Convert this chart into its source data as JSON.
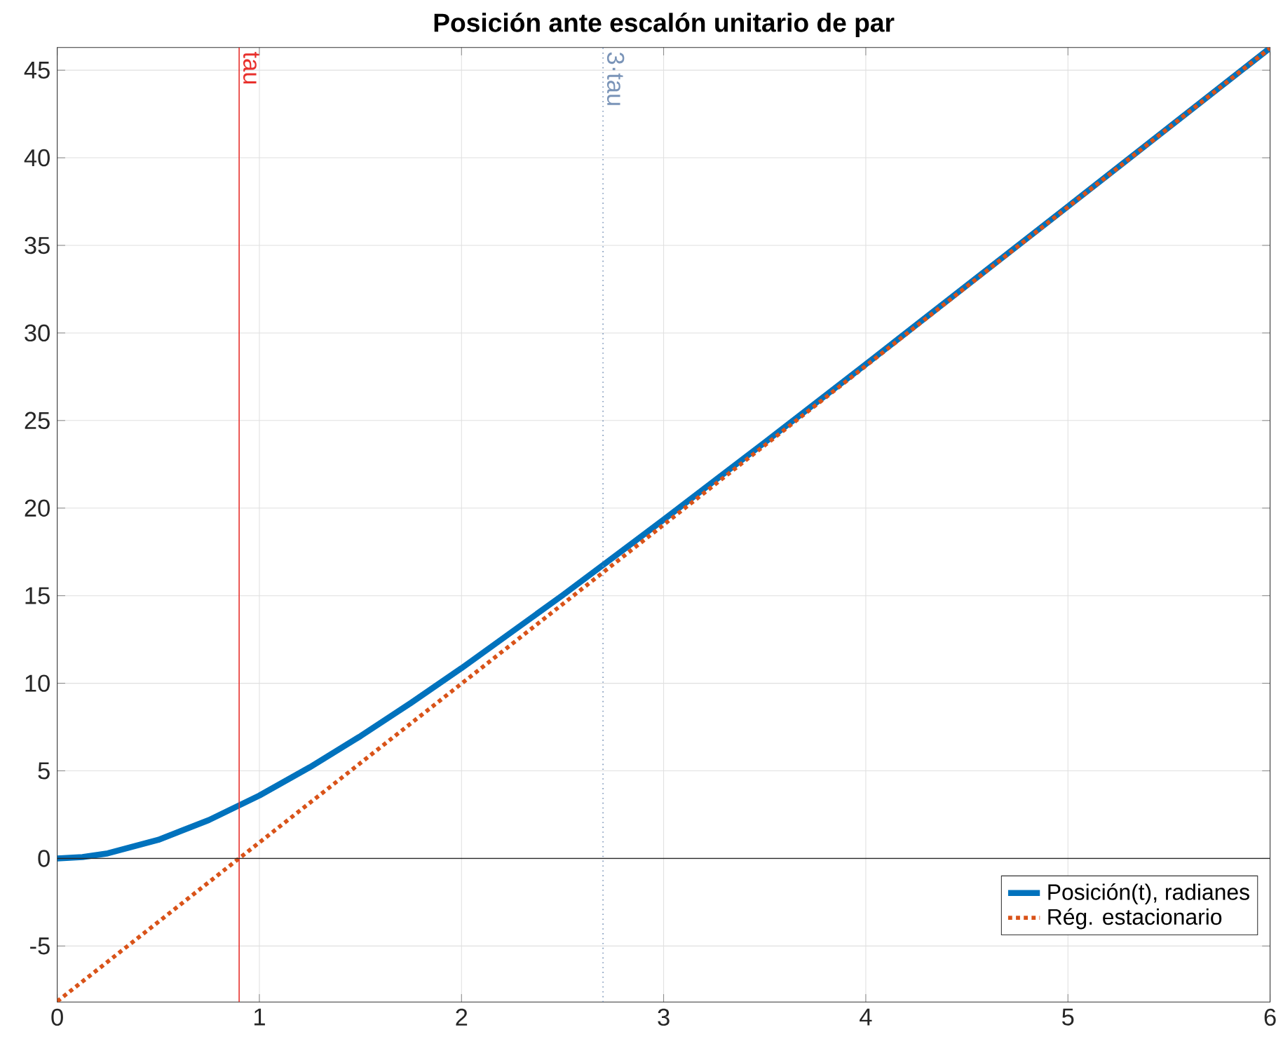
{
  "chart_data": {
    "type": "line",
    "title": "Posición ante escalón unitario de par",
    "xlim": [
      0,
      6
    ],
    "ylim": [
      -8.2,
      46.3
    ],
    "xticks": [
      0,
      1,
      2,
      3,
      4,
      5,
      6
    ],
    "yticks": [
      -5,
      0,
      5,
      10,
      15,
      20,
      25,
      30,
      35,
      40,
      45
    ],
    "grid": true,
    "legend": "bottom right",
    "marker": "none",
    "series": [
      {
        "name": "Posición(t), radianes",
        "color": "#0072bd",
        "line_style": "solid",
        "x": [
          0,
          0.125,
          0.25,
          0.5,
          0.75,
          1.0,
          1.25,
          1.5,
          1.75,
          2.0,
          2.5,
          3.0,
          3.5,
          4.0,
          5.0,
          6.0
        ],
        "values": [
          0,
          0.08,
          0.29,
          1.06,
          2.19,
          3.59,
          5.21,
          6.98,
          8.88,
          10.86,
          15.02,
          19.34,
          23.75,
          28.21,
          37.22,
          46.27
        ]
      },
      {
        "name": "Rég. estacionario",
        "color": "#d95319",
        "line_style": "dotted",
        "x": [
          0,
          6
        ],
        "values": [
          -8.16,
          46.26
        ]
      }
    ],
    "ref_lines": [
      {
        "axis": "x",
        "value": 0.9,
        "label": "tau",
        "color": "#e8302c",
        "line_style": "solid"
      },
      {
        "axis": "x",
        "value": 2.7,
        "label": "3·tau",
        "color": "#7a94b8",
        "line_style": "dotted"
      },
      {
        "axis": "y",
        "value": 0,
        "label": null,
        "color": "#262626",
        "line_style": "solid"
      }
    ]
  }
}
